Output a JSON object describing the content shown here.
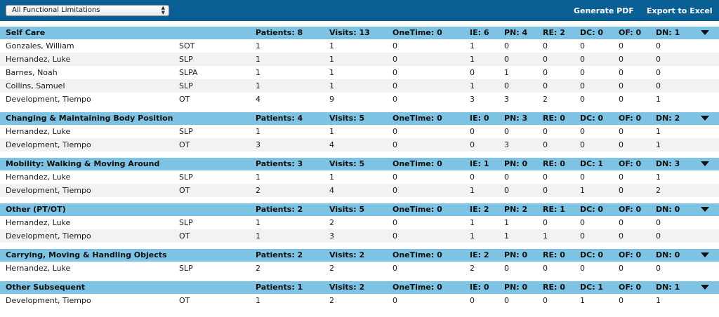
{
  "toolbar": {
    "filter_value": "All Functional Limitations",
    "generate_pdf": "Generate PDF",
    "export_excel": "Export to Excel"
  },
  "sections": [
    {
      "title": "Self Care",
      "patients": "Patients: 8",
      "visits": "Visits: 13",
      "onetime": "OneTime: 0",
      "ie": "IE: 6",
      "pn": "PN: 4",
      "re": "RE: 2",
      "dc": "DC: 0",
      "of": "OF: 0",
      "dn": "DN: 1",
      "rows": [
        {
          "name": "Gonzales, William",
          "disc": "SOT",
          "pat": "1",
          "vis": "1",
          "one": "0",
          "ie": "1",
          "pn": "0",
          "re": "0",
          "dc": "0",
          "of": "0",
          "dn": "0"
        },
        {
          "name": "Hernandez, Luke",
          "disc": "SLP",
          "pat": "1",
          "vis": "1",
          "one": "0",
          "ie": "1",
          "pn": "0",
          "re": "0",
          "dc": "0",
          "of": "0",
          "dn": "0"
        },
        {
          "name": "Barnes, Noah",
          "disc": "SLPA",
          "pat": "1",
          "vis": "1",
          "one": "0",
          "ie": "0",
          "pn": "1",
          "re": "0",
          "dc": "0",
          "of": "0",
          "dn": "0"
        },
        {
          "name": "Collins, Samuel",
          "disc": "SLP",
          "pat": "1",
          "vis": "1",
          "one": "0",
          "ie": "1",
          "pn": "0",
          "re": "0",
          "dc": "0",
          "of": "0",
          "dn": "0"
        },
        {
          "name": "Development, Tiempo",
          "disc": "OT",
          "pat": "4",
          "vis": "9",
          "one": "0",
          "ie": "3",
          "pn": "3",
          "re": "2",
          "dc": "0",
          "of": "0",
          "dn": "1"
        }
      ]
    },
    {
      "title": "Changing & Maintaining Body Position",
      "patients": "Patients: 4",
      "visits": "Visits: 5",
      "onetime": "OneTime: 0",
      "ie": "IE: 0",
      "pn": "PN: 3",
      "re": "RE: 0",
      "dc": "DC: 0",
      "of": "OF: 0",
      "dn": "DN: 2",
      "rows": [
        {
          "name": "Hernandez, Luke",
          "disc": "SLP",
          "pat": "1",
          "vis": "1",
          "one": "0",
          "ie": "0",
          "pn": "0",
          "re": "0",
          "dc": "0",
          "of": "0",
          "dn": "1"
        },
        {
          "name": "Development, Tiempo",
          "disc": "OT",
          "pat": "3",
          "vis": "4",
          "one": "0",
          "ie": "0",
          "pn": "3",
          "re": "0",
          "dc": "0",
          "of": "0",
          "dn": "1"
        }
      ]
    },
    {
      "title": "Mobility: Walking & Moving Around",
      "patients": "Patients: 3",
      "visits": "Visits: 5",
      "onetime": "OneTime: 0",
      "ie": "IE: 1",
      "pn": "PN: 0",
      "re": "RE: 0",
      "dc": "DC: 1",
      "of": "OF: 0",
      "dn": "DN: 3",
      "rows": [
        {
          "name": "Hernandez, Luke",
          "disc": "SLP",
          "pat": "1",
          "vis": "1",
          "one": "0",
          "ie": "0",
          "pn": "0",
          "re": "0",
          "dc": "0",
          "of": "0",
          "dn": "1"
        },
        {
          "name": "Development, Tiempo",
          "disc": "OT",
          "pat": "2",
          "vis": "4",
          "one": "0",
          "ie": "1",
          "pn": "0",
          "re": "0",
          "dc": "1",
          "of": "0",
          "dn": "2"
        }
      ]
    },
    {
      "title": "Other (PT/OT)",
      "patients": "Patients: 2",
      "visits": "Visits: 5",
      "onetime": "OneTime: 0",
      "ie": "IE: 2",
      "pn": "PN: 2",
      "re": "RE: 1",
      "dc": "DC: 0",
      "of": "OF: 0",
      "dn": "DN: 0",
      "rows": [
        {
          "name": "Hernandez, Luke",
          "disc": "SLP",
          "pat": "1",
          "vis": "2",
          "one": "0",
          "ie": "1",
          "pn": "1",
          "re": "0",
          "dc": "0",
          "of": "0",
          "dn": "0"
        },
        {
          "name": "Development, Tiempo",
          "disc": "OT",
          "pat": "1",
          "vis": "3",
          "one": "0",
          "ie": "1",
          "pn": "1",
          "re": "1",
          "dc": "0",
          "of": "0",
          "dn": "0"
        }
      ]
    },
    {
      "title": "Carrying, Moving & Handling Objects",
      "patients": "Patients: 2",
      "visits": "Visits: 2",
      "onetime": "OneTime: 0",
      "ie": "IE: 2",
      "pn": "PN: 0",
      "re": "RE: 0",
      "dc": "DC: 0",
      "of": "OF: 0",
      "dn": "DN: 0",
      "rows": [
        {
          "name": "Hernandez, Luke",
          "disc": "SLP",
          "pat": "2",
          "vis": "2",
          "one": "0",
          "ie": "2",
          "pn": "0",
          "re": "0",
          "dc": "0",
          "of": "0",
          "dn": "0"
        }
      ]
    },
    {
      "title": "Other Subsequent",
      "patients": "Patients: 1",
      "visits": "Visits: 2",
      "onetime": "OneTime: 0",
      "ie": "IE: 0",
      "pn": "PN: 0",
      "re": "RE: 0",
      "dc": "DC: 1",
      "of": "OF: 0",
      "dn": "DN: 1",
      "rows": [
        {
          "name": "Development, Tiempo",
          "disc": "OT",
          "pat": "1",
          "vis": "2",
          "one": "0",
          "ie": "0",
          "pn": "0",
          "re": "0",
          "dc": "1",
          "of": "0",
          "dn": "1"
        }
      ]
    }
  ]
}
